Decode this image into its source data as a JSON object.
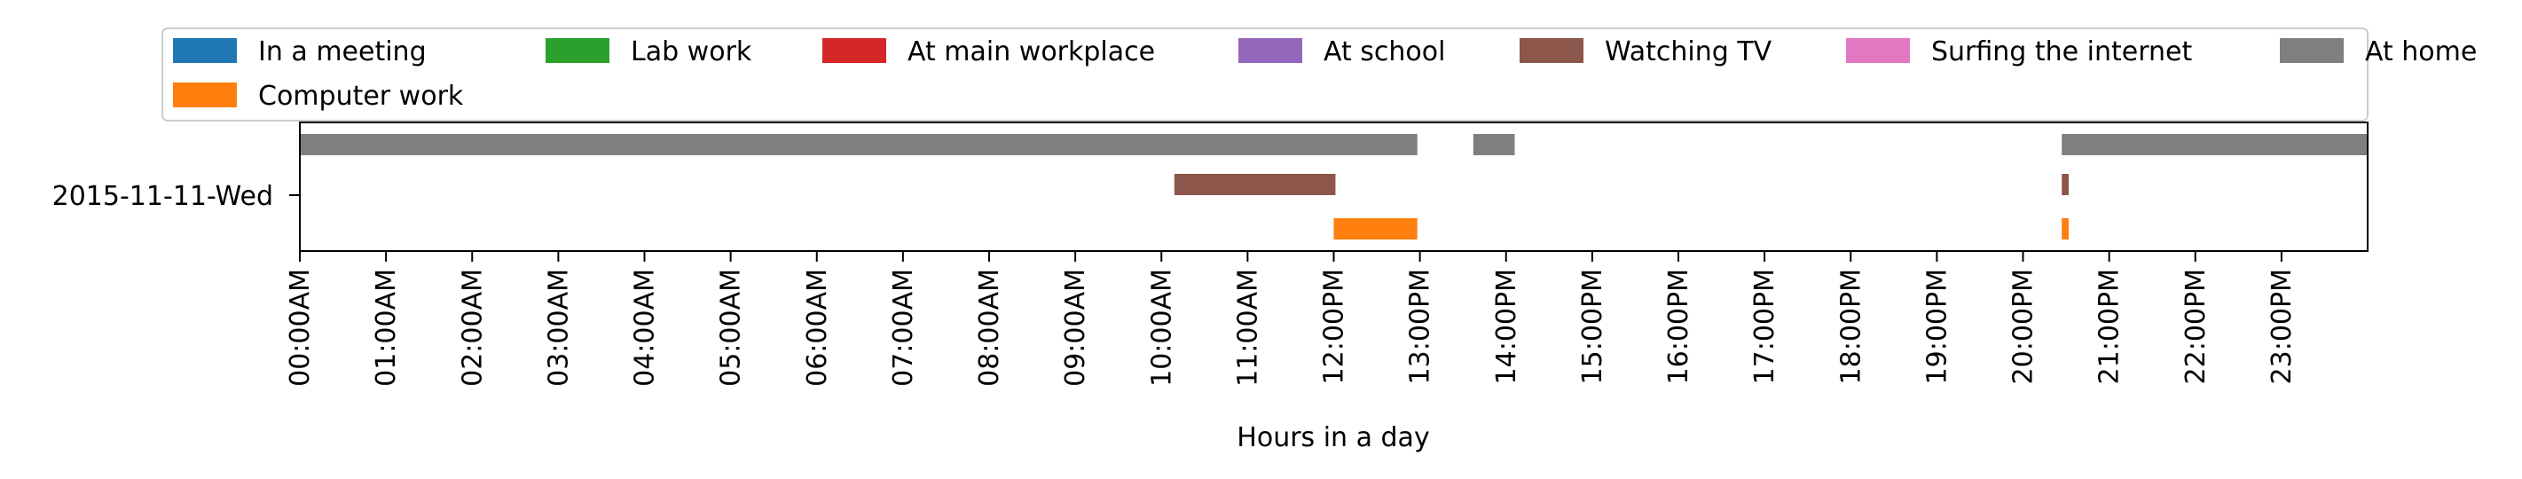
{
  "chart_data": {
    "type": "timeline",
    "xlabel": "Hours in a day",
    "ylabel": "",
    "xlim": [
      0,
      24
    ],
    "x_ticks": [
      0,
      1,
      2,
      3,
      4,
      5,
      6,
      7,
      8,
      9,
      10,
      11,
      12,
      13,
      14,
      15,
      16,
      17,
      18,
      19,
      20,
      21,
      22,
      23
    ],
    "x_tick_labels": [
      "00:00AM",
      "01:00AM",
      "02:00AM",
      "03:00AM",
      "04:00AM",
      "05:00AM",
      "06:00AM",
      "07:00AM",
      "08:00AM",
      "09:00AM",
      "10:00AM",
      "11:00AM",
      "12:00PM",
      "13:00PM",
      "14:00PM",
      "15:00PM",
      "16:00PM",
      "17:00PM",
      "18:00PM",
      "19:00PM",
      "20:00PM",
      "21:00PM",
      "22:00PM",
      "23:00PM"
    ],
    "categories": [
      "2015-11-11-Wed"
    ],
    "legend_position": "top",
    "legend": [
      {
        "name": "In a meeting",
        "color": "#1f77b4"
      },
      {
        "name": "Lab work",
        "color": "#2ca02c"
      },
      {
        "name": "At main workplace",
        "color": "#d62728"
      },
      {
        "name": "At school",
        "color": "#9467bd"
      },
      {
        "name": "Watching TV",
        "color": "#8c564b"
      },
      {
        "name": "Surfing the internet",
        "color": "#e377c2"
      },
      {
        "name": "At home",
        "color": "#7f7f7f"
      },
      {
        "name": "Computer work",
        "color": "#ff7f0e"
      }
    ],
    "series": [
      {
        "name": "At home",
        "color": "#7f7f7f",
        "lane": 0,
        "intervals": [
          [
            0.0,
            12.97
          ],
          [
            13.62,
            14.1
          ],
          [
            20.45,
            23.85
          ],
          [
            23.85,
            24.0
          ]
        ]
      },
      {
        "name": "Watching TV",
        "color": "#8c564b",
        "lane": 1,
        "intervals": [
          [
            10.15,
            12.02
          ],
          [
            20.45,
            20.53
          ]
        ]
      },
      {
        "name": "Computer work",
        "color": "#ff7f0e",
        "lane": 2,
        "intervals": [
          [
            12.0,
            12.97
          ],
          [
            20.45,
            20.53
          ]
        ]
      }
    ]
  }
}
